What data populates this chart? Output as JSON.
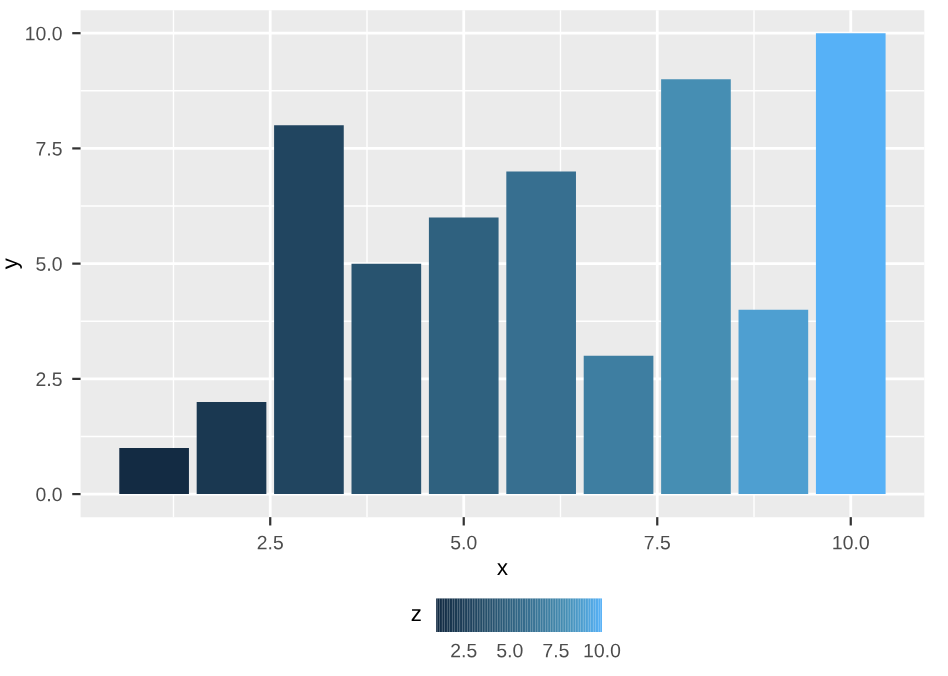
{
  "chart_data": {
    "type": "bar",
    "xlabel": "x",
    "ylabel": "y",
    "clabel": "z",
    "x": [
      1,
      2,
      3,
      4,
      5,
      6,
      7,
      8,
      9,
      10
    ],
    "values": [
      1,
      2,
      8,
      5,
      6,
      7,
      3,
      9,
      4,
      10
    ],
    "colors": [
      "#132b43",
      "#1a3851",
      "#214560",
      "#28536f",
      "#2f617f",
      "#376f90",
      "#3e7ea1",
      "#468eb3",
      "#4e9fd1",
      "#56b1f7"
    ],
    "xlim": [
      0.05,
      10.95
    ],
    "xticks": [
      2.5,
      {
        "value": 5,
        "label": "5.0"
      },
      7.5,
      {
        "value": 10,
        "label": "10.0"
      }
    ],
    "ylim": [
      -0.5,
      10.5
    ],
    "yticks": [
      {
        "value": 0,
        "label": "0.0"
      },
      2.5,
      {
        "value": 5,
        "label": "5.0"
      },
      7.5,
      {
        "value": 10,
        "label": "10.0"
      }
    ],
    "clim": [
      1,
      10
    ],
    "cticks": [
      2.5,
      {
        "value": 5,
        "label": "5.0"
      },
      7.5,
      {
        "value": 10,
        "label": "10.0"
      }
    ],
    "grid": true
  }
}
